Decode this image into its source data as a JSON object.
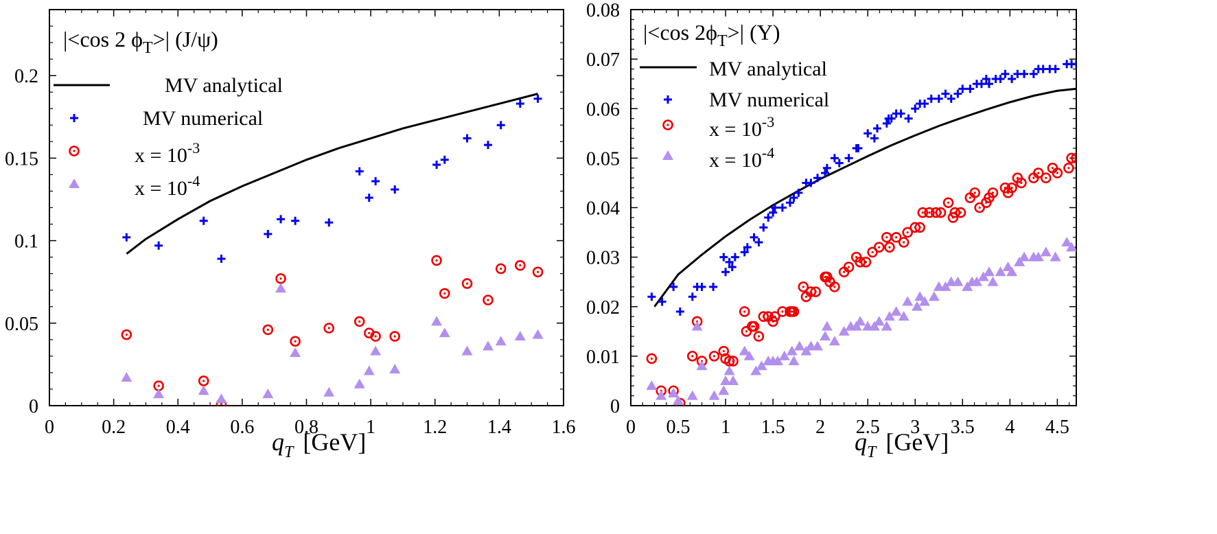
{
  "chart_data": [
    {
      "type": "scatter",
      "title_prefix": "|<cos 2 ϕ",
      "title_sub": "T",
      "title_suffix": ">| (J/ψ)",
      "xlabel_main": "q",
      "xlabel_sub": "T",
      "xlabel_unit": "[GeV]",
      "ylabel": "",
      "xlim": [
        0,
        1.6
      ],
      "ylim": [
        0,
        0.24
      ],
      "xticks": [
        "0",
        "0.2",
        "0.4",
        "0.6",
        "0.8",
        "1",
        "1.2",
        "1.4",
        "1.6"
      ],
      "yticks": [
        "0",
        "0.05",
        "0.1",
        "0.15",
        "0.2"
      ],
      "xtick_values": [
        0,
        0.2,
        0.4,
        0.6,
        0.8,
        1.0,
        1.2,
        1.4,
        1.6
      ],
      "ytick_values": [
        0,
        0.05,
        0.1,
        0.15,
        0.2
      ],
      "legend": {
        "analytical": "MV analytical",
        "numerical": "MV numerical",
        "x3_prefix": "x = 10",
        "x3_exp": "-3",
        "x4_prefix": "x = 10",
        "x4_exp": "-4"
      },
      "series": [
        {
          "name": "MV analytical",
          "style": "line",
          "color": "#000000",
          "x": [
            0.24,
            0.3,
            0.4,
            0.5,
            0.6,
            0.7,
            0.8,
            0.9,
            1.0,
            1.1,
            1.2,
            1.3,
            1.4,
            1.52
          ],
          "y": [
            0.092,
            0.101,
            0.113,
            0.124,
            0.133,
            0.141,
            0.149,
            0.156,
            0.162,
            0.168,
            0.173,
            0.178,
            0.183,
            0.189
          ]
        },
        {
          "name": "MV numerical",
          "style": "plus",
          "color": "#0000ee",
          "x": [
            0.24,
            0.34,
            0.48,
            0.535,
            0.68,
            0.72,
            0.765,
            0.87,
            0.965,
            0.995,
            1.015,
            1.075,
            1.205,
            1.23,
            1.3,
            1.365,
            1.405,
            1.465,
            1.52
          ],
          "y": [
            0.102,
            0.097,
            0.112,
            0.089,
            0.104,
            0.113,
            0.112,
            0.111,
            0.142,
            0.126,
            0.136,
            0.131,
            0.146,
            0.149,
            0.162,
            0.158,
            0.17,
            0.183,
            0.186
          ]
        },
        {
          "name": "x = 10^-3",
          "style": "circle",
          "color": "#ee0000",
          "x": [
            0.24,
            0.34,
            0.48,
            0.535,
            0.68,
            0.72,
            0.765,
            0.87,
            0.965,
            0.995,
            1.015,
            1.075,
            1.205,
            1.23,
            1.3,
            1.365,
            1.405,
            1.465,
            1.52
          ],
          "y": [
            0.043,
            0.012,
            0.015,
            0.001,
            0.046,
            0.077,
            0.039,
            0.047,
            0.051,
            0.044,
            0.042,
            0.042,
            0.088,
            0.068,
            0.074,
            0.064,
            0.083,
            0.085,
            0.081
          ]
        },
        {
          "name": "x = 10^-4",
          "style": "triangle",
          "color": "#b38fee",
          "x": [
            0.24,
            0.34,
            0.48,
            0.535,
            0.68,
            0.72,
            0.765,
            0.87,
            0.965,
            0.995,
            1.015,
            1.075,
            1.205,
            1.23,
            1.3,
            1.365,
            1.405,
            1.465,
            1.52
          ],
          "y": [
            0.017,
            0.007,
            0.009,
            0.004,
            0.007,
            0.071,
            0.032,
            0.008,
            0.013,
            0.021,
            0.033,
            0.022,
            0.051,
            0.044,
            0.033,
            0.036,
            0.039,
            0.042,
            0.043
          ]
        }
      ]
    },
    {
      "type": "scatter",
      "title_prefix": "|<cos 2ϕ",
      "title_sub": "T",
      "title_suffix": ">| (Υ)",
      "xlabel_main": "q",
      "xlabel_sub": "T",
      "xlabel_unit": "[GeV]",
      "ylabel": "",
      "xlim": [
        0,
        4.7
      ],
      "ylim": [
        0,
        0.08
      ],
      "xticks": [
        "0",
        "0.5",
        "1",
        "1.5",
        "2",
        "2.5",
        "3",
        "3.5",
        "4",
        "4.5"
      ],
      "yticks": [
        "0",
        "0.01",
        "0.02",
        "0.03",
        "0.04",
        "0.05",
        "0.06",
        "0.07",
        "0.08"
      ],
      "xtick_values": [
        0,
        0.5,
        1.0,
        1.5,
        2.0,
        2.5,
        3.0,
        3.5,
        4.0,
        4.5
      ],
      "ytick_values": [
        0,
        0.01,
        0.02,
        0.03,
        0.04,
        0.05,
        0.06,
        0.07,
        0.08
      ],
      "legend": {
        "analytical": "MV analytical",
        "numerical": "MV numerical",
        "x3_prefix": "x = 10",
        "x3_exp": "-3",
        "x4_prefix": "x = 10",
        "x4_exp": "-4"
      },
      "series": [
        {
          "name": "MV analytical",
          "style": "line",
          "color": "#000000",
          "x": [
            0.25,
            0.5,
            0.75,
            1.0,
            1.25,
            1.5,
            1.75,
            2.0,
            2.25,
            2.5,
            2.75,
            3.0,
            3.25,
            3.5,
            3.75,
            4.0,
            4.25,
            4.5,
            4.7
          ],
          "y": [
            0.02,
            0.0265,
            0.0305,
            0.0342,
            0.0375,
            0.0405,
            0.0432,
            0.0458,
            0.0481,
            0.0504,
            0.0526,
            0.0546,
            0.0565,
            0.0582,
            0.0598,
            0.0613,
            0.0626,
            0.0636,
            0.064
          ]
        },
        {
          "name": "MV numerical",
          "style": "plus",
          "color": "#0000ee",
          "x": [
            0.22,
            0.33,
            0.45,
            0.52,
            0.65,
            0.7,
            0.75,
            0.87,
            0.98,
            1.0,
            1.04,
            1.07,
            1.1,
            1.2,
            1.23,
            1.3,
            1.35,
            1.4,
            1.45,
            1.5,
            1.52,
            1.6,
            1.68,
            1.72,
            1.77,
            1.85,
            1.9,
            1.97,
            2.05,
            2.07,
            2.15,
            2.2,
            2.3,
            2.38,
            2.4,
            2.5,
            2.57,
            2.6,
            2.7,
            2.72,
            2.75,
            2.8,
            2.85,
            2.93,
            3.0,
            3.05,
            3.1,
            3.17,
            3.25,
            3.32,
            3.38,
            3.45,
            3.5,
            3.58,
            3.65,
            3.7,
            3.75,
            3.78,
            3.85,
            3.9,
            3.95,
            4.02,
            4.08,
            4.15,
            4.25,
            4.3,
            4.35,
            4.42,
            4.48,
            4.6,
            4.65,
            4.7
          ],
          "y": [
            0.022,
            0.021,
            0.024,
            0.019,
            0.022,
            0.024,
            0.024,
            0.024,
            0.03,
            0.027,
            0.029,
            0.028,
            0.03,
            0.031,
            0.032,
            0.034,
            0.033,
            0.036,
            0.038,
            0.039,
            0.04,
            0.04,
            0.041,
            0.042,
            0.043,
            0.045,
            0.045,
            0.046,
            0.047,
            0.048,
            0.05,
            0.049,
            0.05,
            0.052,
            0.052,
            0.055,
            0.054,
            0.056,
            0.057,
            0.058,
            0.058,
            0.059,
            0.059,
            0.058,
            0.06,
            0.061,
            0.061,
            0.062,
            0.062,
            0.063,
            0.062,
            0.063,
            0.064,
            0.064,
            0.065,
            0.065,
            0.066,
            0.065,
            0.066,
            0.066,
            0.067,
            0.066,
            0.067,
            0.067,
            0.067,
            0.068,
            0.068,
            0.068,
            0.068,
            0.069,
            0.069,
            0.069
          ]
        },
        {
          "name": "x = 10^-3",
          "style": "circle",
          "color": "#ee0000",
          "x": [
            0.22,
            0.32,
            0.45,
            0.52,
            0.65,
            0.7,
            0.75,
            0.88,
            0.98,
            1.0,
            1.04,
            1.08,
            1.2,
            1.22,
            1.28,
            1.3,
            1.35,
            1.4,
            1.45,
            1.5,
            1.52,
            1.6,
            1.68,
            1.7,
            1.72,
            1.82,
            1.85,
            1.9,
            1.95,
            2.05,
            2.07,
            2.1,
            2.15,
            2.25,
            2.3,
            2.38,
            2.42,
            2.48,
            2.55,
            2.62,
            2.7,
            2.73,
            2.8,
            2.88,
            2.92,
            3.0,
            3.05,
            3.08,
            3.15,
            3.22,
            3.27,
            3.35,
            3.4,
            3.42,
            3.48,
            3.58,
            3.63,
            3.68,
            3.75,
            3.78,
            3.82,
            3.95,
            3.98,
            4.02,
            4.08,
            4.12,
            4.25,
            4.3,
            4.38,
            4.45,
            4.5,
            4.62,
            4.65,
            4.7
          ],
          "y": [
            0.0095,
            0.003,
            0.003,
            0.0005,
            0.01,
            0.017,
            0.009,
            0.01,
            0.011,
            0.0095,
            0.009,
            0.009,
            0.019,
            0.015,
            0.016,
            0.016,
            0.014,
            0.018,
            0.018,
            0.017,
            0.018,
            0.019,
            0.019,
            0.019,
            0.019,
            0.024,
            0.022,
            0.023,
            0.023,
            0.026,
            0.026,
            0.025,
            0.024,
            0.027,
            0.028,
            0.03,
            0.029,
            0.029,
            0.031,
            0.032,
            0.034,
            0.032,
            0.034,
            0.033,
            0.035,
            0.036,
            0.036,
            0.039,
            0.039,
            0.039,
            0.039,
            0.041,
            0.038,
            0.039,
            0.039,
            0.042,
            0.043,
            0.04,
            0.041,
            0.042,
            0.043,
            0.044,
            0.043,
            0.044,
            0.046,
            0.045,
            0.046,
            0.047,
            0.046,
            0.048,
            0.047,
            0.048,
            0.05,
            0.05
          ]
        },
        {
          "name": "x = 10^-4",
          "style": "triangle",
          "color": "#b38fee",
          "x": [
            0.22,
            0.32,
            0.45,
            0.5,
            0.65,
            0.7,
            0.75,
            0.88,
            0.98,
            1.0,
            1.04,
            1.08,
            1.2,
            1.25,
            1.32,
            1.38,
            1.45,
            1.5,
            1.55,
            1.62,
            1.7,
            1.72,
            1.78,
            1.85,
            1.9,
            1.97,
            2.05,
            2.07,
            2.15,
            2.25,
            2.32,
            2.38,
            2.42,
            2.5,
            2.57,
            2.62,
            2.7,
            2.73,
            2.8,
            2.88,
            2.92,
            3.02,
            3.05,
            3.1,
            3.2,
            3.25,
            3.32,
            3.38,
            3.45,
            3.55,
            3.6,
            3.65,
            3.72,
            3.78,
            3.82,
            3.9,
            3.98,
            4.02,
            4.1,
            4.15,
            4.25,
            4.3,
            4.38,
            4.48,
            4.6,
            4.65
          ],
          "y": [
            0.004,
            0.002,
            0.0025,
            0.001,
            0.002,
            0.016,
            0.008,
            0.002,
            0.003,
            0.005,
            0.007,
            0.005,
            0.011,
            0.01,
            0.007,
            0.008,
            0.009,
            0.009,
            0.009,
            0.01,
            0.011,
            0.009,
            0.012,
            0.011,
            0.012,
            0.012,
            0.014,
            0.016,
            0.013,
            0.015,
            0.016,
            0.016,
            0.017,
            0.016,
            0.016,
            0.017,
            0.016,
            0.018,
            0.019,
            0.018,
            0.021,
            0.02,
            0.022,
            0.021,
            0.022,
            0.024,
            0.024,
            0.025,
            0.025,
            0.024,
            0.025,
            0.025,
            0.026,
            0.027,
            0.025,
            0.027,
            0.028,
            0.027,
            0.029,
            0.03,
            0.03,
            0.03,
            0.031,
            0.03,
            0.033,
            0.032
          ]
        }
      ]
    }
  ]
}
